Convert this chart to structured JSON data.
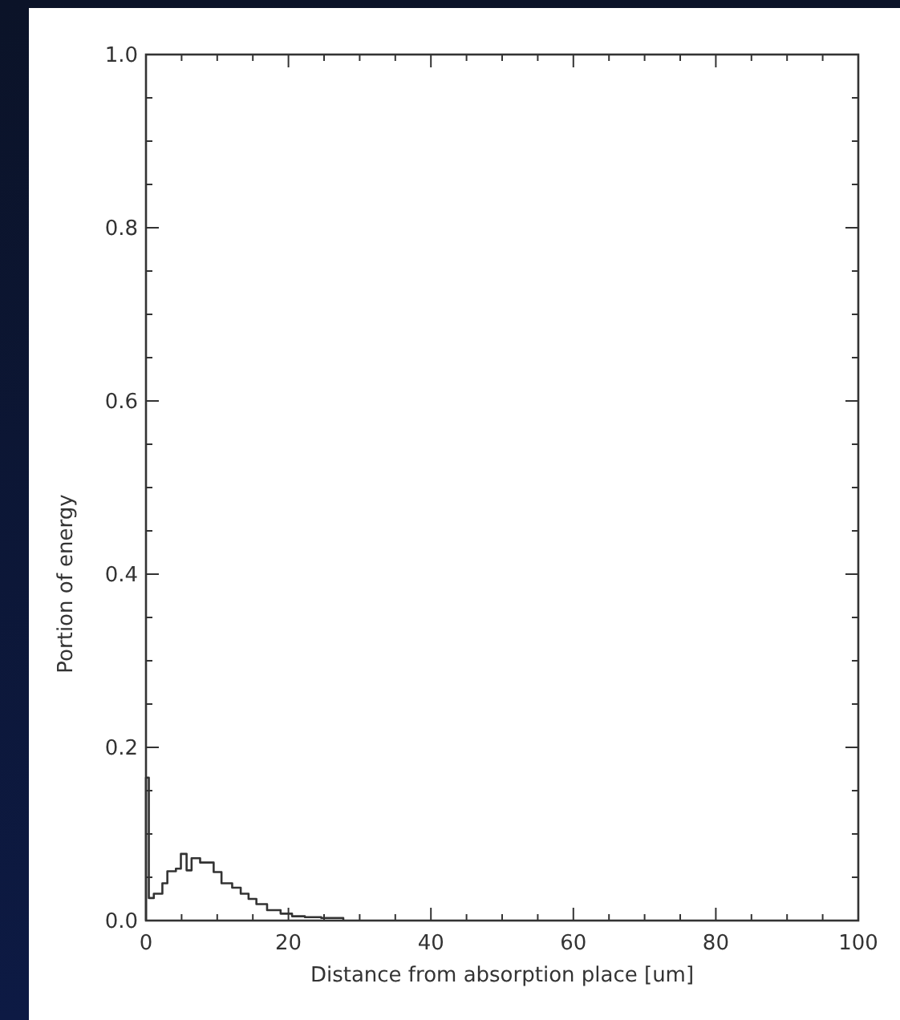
{
  "chart_data": {
    "type": "histogram",
    "xlabel": "Distance from absorption place [um]",
    "ylabel": "Portion of energy",
    "bins": [
      0,
      0.4,
      1.1,
      2.3,
      3,
      4.2,
      4.9,
      5.7,
      6.4,
      7.6,
      9.5,
      10.6,
      12.1,
      13.3,
      14.4,
      15.5,
      17,
      18.9,
      20.5,
      22.3,
      24.6,
      27.7
    ],
    "values": [
      0.165,
      0.026,
      0.031,
      0.043,
      0.057,
      0.06,
      0.077,
      0.058,
      0.072,
      0.067,
      0.056,
      0.043,
      0.038,
      0.031,
      0.025,
      0.019,
      0.012,
      0.008,
      0.005,
      0.004,
      0.003
    ],
    "color": "#333333",
    "xlim": [
      0,
      100
    ],
    "ylim": [
      0,
      1
    ],
    "xticks": [
      0,
      {
        "value": 5,
        "label": null
      },
      {
        "value": 10,
        "label": null
      },
      {
        "value": 15,
        "label": null
      },
      20,
      {
        "value": 25,
        "label": null
      },
      {
        "value": 30,
        "label": null
      },
      {
        "value": 35,
        "label": null
      },
      40,
      {
        "value": 45,
        "label": null
      },
      {
        "value": 50,
        "label": null
      },
      {
        "value": 55,
        "label": null
      },
      60,
      {
        "value": 65,
        "label": null
      },
      {
        "value": 70,
        "label": null
      },
      {
        "value": 75,
        "label": null
      },
      80,
      {
        "value": 85,
        "label": null
      },
      {
        "value": 90,
        "label": null
      },
      {
        "value": 95,
        "label": null
      },
      100
    ],
    "yticks": [
      {
        "value": 0,
        "label": "0.0"
      },
      {
        "value": 0.05,
        "label": null
      },
      {
        "value": 0.1,
        "label": null
      },
      {
        "value": 0.15,
        "label": null
      },
      {
        "value": 0.2,
        "label": "0.2"
      },
      {
        "value": 0.25,
        "label": null
      },
      {
        "value": 0.3,
        "label": null
      },
      {
        "value": 0.35,
        "label": null
      },
      {
        "value": 0.4,
        "label": "0.4"
      },
      {
        "value": 0.45,
        "label": null
      },
      {
        "value": 0.5,
        "label": null
      },
      {
        "value": 0.55,
        "label": null
      },
      {
        "value": 0.6,
        "label": "0.6"
      },
      {
        "value": 0.65,
        "label": null
      },
      {
        "value": 0.7,
        "label": null
      },
      {
        "value": 0.75,
        "label": null
      },
      {
        "value": 0.8,
        "label": "0.8"
      },
      {
        "value": 0.85,
        "label": null
      },
      {
        "value": 0.9,
        "label": null
      },
      {
        "value": 0.95,
        "label": null
      },
      {
        "value": 1,
        "label": "1.0"
      }
    ],
    "grid": false
  }
}
